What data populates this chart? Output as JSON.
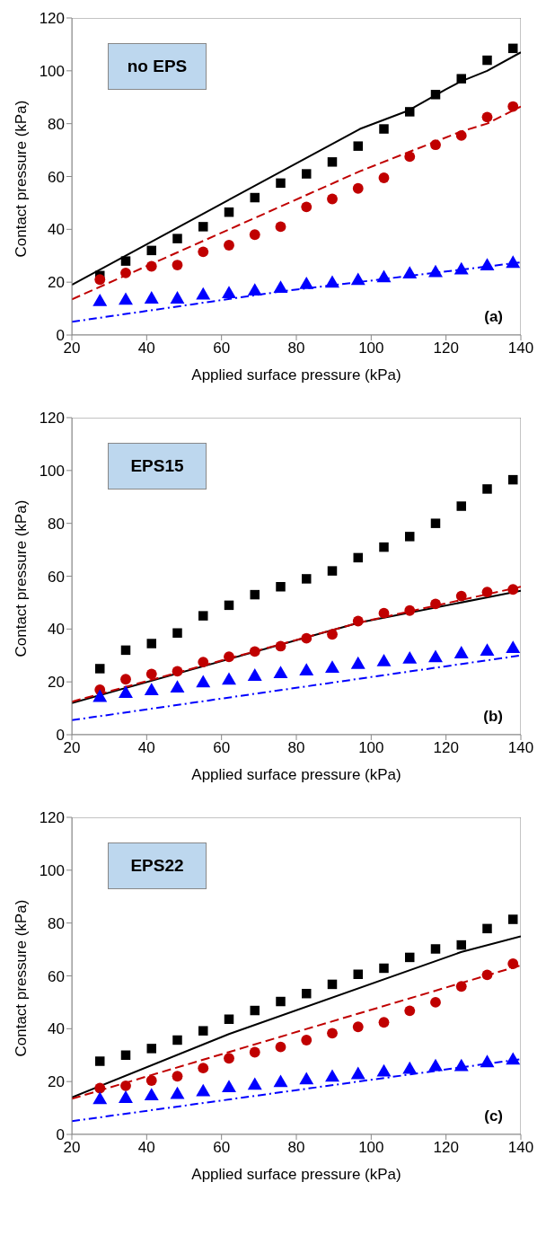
{
  "chart_data": [
    {
      "type": "scatter",
      "xlabel": "Applied surface pressure (kPa)",
      "ylabel": "Contact pressure (kPa)",
      "xlim": [
        20,
        140
      ],
      "xticks": [
        20,
        40,
        60,
        80,
        100,
        120,
        140
      ],
      "ylim": [
        0,
        120
      ],
      "yticks": [
        0,
        20,
        40,
        60,
        80,
        100,
        120
      ],
      "annotations": [
        "no EPS",
        "(a)"
      ],
      "series": [
        {
          "type": "scatter",
          "marker": "square",
          "color": "#000000",
          "x": [
            27.5,
            34.4,
            41.3,
            48.2,
            55.1,
            62,
            68.9,
            75.8,
            82.7,
            89.6,
            96.5,
            103.4,
            110.3,
            117.2,
            124.1,
            131,
            137.9
          ],
          "values": [
            22.5,
            28,
            32,
            36.5,
            41,
            46.5,
            52,
            57.5,
            61,
            65.5,
            71.5,
            78,
            84.5,
            91,
            97,
            104,
            108.5
          ]
        },
        {
          "type": "scatter",
          "marker": "circle",
          "color": "#c00000",
          "x": [
            27.5,
            34.4,
            41.3,
            48.2,
            55.1,
            62,
            68.9,
            75.8,
            82.7,
            89.6,
            96.5,
            103.4,
            110.3,
            117.2,
            124.1,
            131,
            137.9
          ],
          "values": [
            21,
            23.5,
            26,
            26.5,
            31.5,
            34,
            38,
            41,
            48.5,
            51.5,
            55.5,
            59.5,
            67.5,
            72,
            75.5,
            82.5,
            86.5
          ]
        },
        {
          "type": "scatter",
          "marker": "triangle",
          "color": "#0000ff",
          "x": [
            27.5,
            34.4,
            41.3,
            48.2,
            55.1,
            62,
            68.9,
            75.8,
            82.7,
            89.6,
            96.5,
            103.4,
            110.3,
            117.2,
            124.1,
            131,
            137.9
          ],
          "values": [
            12.5,
            13,
            13.5,
            13.5,
            15,
            15.5,
            16.5,
            17.5,
            19,
            19.5,
            20.5,
            21.5,
            23,
            23.5,
            24.5,
            26,
            27
          ]
        },
        {
          "type": "line",
          "line_style": "solid",
          "color": "#000000",
          "x": [
            20,
            97,
            110,
            120,
            124,
            131,
            140
          ],
          "values": [
            19,
            78,
            85,
            93,
            96,
            100,
            107
          ]
        },
        {
          "type": "line",
          "line_style": "dashed",
          "color": "#c00000",
          "x": [
            20,
            97,
            124,
            131,
            140
          ],
          "values": [
            13.5,
            62,
            77,
            80,
            86.5
          ]
        },
        {
          "type": "line",
          "line_style": "dashdot",
          "color": "#0000ff",
          "x": [
            20,
            76,
            140
          ],
          "values": [
            5,
            16.5,
            27.5
          ]
        }
      ]
    },
    {
      "type": "scatter",
      "xlabel": "Applied surface pressure (kPa)",
      "ylabel": "Contact pressure (kPa)",
      "xlim": [
        20,
        140
      ],
      "xticks": [
        20,
        40,
        60,
        80,
        100,
        120,
        140
      ],
      "ylim": [
        0,
        120
      ],
      "yticks": [
        0,
        20,
        40,
        60,
        80,
        100,
        120
      ],
      "annotations": [
        "EPS15",
        "(b)"
      ],
      "series": [
        {
          "type": "scatter",
          "marker": "square",
          "color": "#000000",
          "x": [
            27.5,
            34.4,
            41.3,
            48.2,
            55.1,
            62,
            68.9,
            75.8,
            82.7,
            89.6,
            96.5,
            103.4,
            110.3,
            117.2,
            124.1,
            131,
            137.9
          ],
          "values": [
            25,
            32,
            34.5,
            38.5,
            45,
            49,
            53,
            56,
            59,
            62,
            67,
            71,
            75,
            80,
            86.5,
            93,
            96.5
          ]
        },
        {
          "type": "scatter",
          "marker": "circle",
          "color": "#c00000",
          "x": [
            27.5,
            34.4,
            41.3,
            48.2,
            55.1,
            62,
            68.9,
            75.8,
            82.7,
            89.6,
            96.5,
            103.4,
            110.3,
            117.2,
            124.1,
            131,
            137.9
          ],
          "values": [
            17,
            21,
            23,
            24,
            27.5,
            29.5,
            31.5,
            33.5,
            36.5,
            38,
            43,
            46,
            47,
            49.5,
            52.5,
            54,
            55
          ]
        },
        {
          "type": "scatter",
          "marker": "triangle",
          "color": "#0000ff",
          "x": [
            27.5,
            34.4,
            41.3,
            48.2,
            55.1,
            62,
            68.9,
            75.8,
            82.7,
            89.6,
            96.5,
            103.4,
            110.3,
            117.2,
            124.1,
            131,
            137.9
          ],
          "values": [
            14,
            15.5,
            16.5,
            17.5,
            19.5,
            20.5,
            22,
            23,
            24,
            25,
            26.5,
            27.5,
            28.5,
            29,
            30.5,
            31.5,
            32.5
          ]
        },
        {
          "type": "line",
          "line_style": "solid",
          "color": "#000000",
          "x": [
            20,
            97,
            140
          ],
          "values": [
            12,
            42.5,
            54.5
          ]
        },
        {
          "type": "line",
          "line_style": "dashed",
          "color": "#c00000",
          "x": [
            20,
            97,
            140
          ],
          "values": [
            12.5,
            42.5,
            56
          ]
        },
        {
          "type": "line",
          "line_style": "dashdot",
          "color": "#0000ff",
          "x": [
            20,
            140
          ],
          "values": [
            5.5,
            30
          ]
        }
      ]
    },
    {
      "type": "scatter",
      "xlabel": "Applied surface pressure (kPa)",
      "ylabel": "Contact pressure (kPa)",
      "xlim": [
        20,
        140
      ],
      "xticks": [
        20,
        40,
        60,
        80,
        100,
        120,
        140
      ],
      "ylim": [
        0,
        120
      ],
      "yticks": [
        0,
        20,
        40,
        60,
        80,
        100,
        120
      ],
      "annotations": [
        "EPS22",
        "(c)"
      ],
      "series": [
        {
          "type": "scatter",
          "marker": "square",
          "color": "#000000",
          "x": [
            27.5,
            34.4,
            41.3,
            48.2,
            55.1,
            62,
            68.9,
            75.8,
            82.7,
            89.6,
            96.5,
            103.4,
            110.3,
            117.2,
            124.1,
            131,
            137.9
          ],
          "values": [
            27.7,
            30,
            32.5,
            35.7,
            39.2,
            43.6,
            46.9,
            50.3,
            53.3,
            56.8,
            60.6,
            62.9,
            67,
            70.2,
            71.7,
            77.9,
            81.4
          ]
        },
        {
          "type": "scatter",
          "marker": "circle",
          "color": "#c00000",
          "x": [
            27.5,
            34.4,
            41.3,
            48.2,
            55.1,
            62,
            68.9,
            75.8,
            82.7,
            89.6,
            96.5,
            103.4,
            110.3,
            117.2,
            124.1,
            131,
            137.9
          ],
          "values": [
            17.5,
            18.4,
            20.4,
            22,
            25.1,
            28.8,
            31.1,
            33.1,
            35.7,
            38.3,
            40.7,
            42.4,
            46.8,
            50,
            56,
            60.4,
            64.6
          ]
        },
        {
          "type": "scatter",
          "marker": "triangle",
          "color": "#0000ff",
          "x": [
            27.5,
            34.4,
            41.3,
            48.2,
            55.1,
            62,
            68.9,
            75.8,
            82.7,
            89.6,
            96.5,
            103.4,
            110.3,
            117.2,
            124.1,
            131,
            137.9
          ],
          "values": [
            13,
            13.5,
            14.5,
            15,
            16,
            17.5,
            18.5,
            19.5,
            20.5,
            21.5,
            22.5,
            23.5,
            24.5,
            25.5,
            25.5,
            27,
            28
          ]
        },
        {
          "type": "line",
          "line_style": "solid",
          "color": "#000000",
          "x": [
            20,
            62,
            124,
            140
          ],
          "values": [
            14,
            38,
            69,
            75
          ]
        },
        {
          "type": "line",
          "line_style": "dashed",
          "color": "#c00000",
          "x": [
            20,
            140
          ],
          "values": [
            13.5,
            64
          ]
        },
        {
          "type": "line",
          "line_style": "dashdot",
          "color": "#0000ff",
          "x": [
            20,
            140
          ],
          "values": [
            5,
            28.5
          ]
        }
      ]
    }
  ]
}
